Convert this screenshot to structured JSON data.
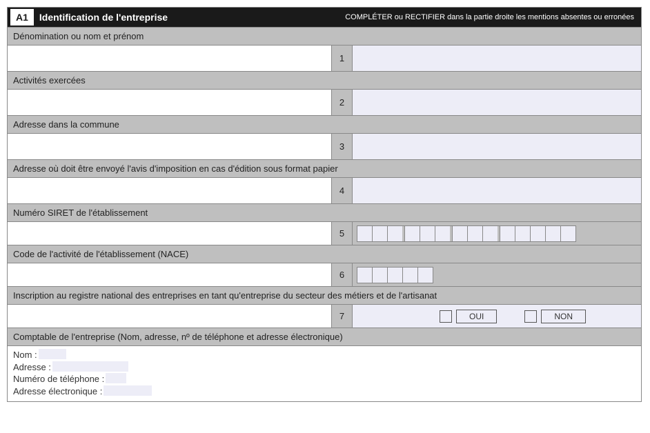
{
  "header": {
    "code": "A1",
    "title": "Identification de l'entreprise",
    "note": "COMPLÉTER ou RECTIFIER dans la partie droite les mentions absentes ou erronées"
  },
  "rows": {
    "r1": {
      "label": "Dénomination ou nom et prénom",
      "num": "1"
    },
    "r2": {
      "label": "Activités exercées",
      "num": "2"
    },
    "r3": {
      "label": "Adresse dans la commune",
      "num": "3"
    },
    "r4": {
      "label": "Adresse où doit être envoyé l'avis d'imposition en cas d'édition sous format papier",
      "num": "4"
    },
    "r5": {
      "label": "Numéro SIRET de l'établissement",
      "num": "5"
    },
    "r6": {
      "label": "Code de l'activité de l'établissement (NACE)",
      "num": "6"
    },
    "r7": {
      "label": "Inscription au registre national des entreprises en tant qu'entreprise du secteur des métiers et de l'artisanat",
      "num": "7",
      "oui": "OUI",
      "non": "NON"
    },
    "r8": {
      "label": "Comptable de l'entreprise (Nom, adresse, nº de téléphone et adresse électronique)"
    }
  },
  "comptable": {
    "nom": "Nom :",
    "adresse": "Adresse :",
    "tel": "Numéro de téléphone :",
    "email": "Adresse électronique :"
  }
}
